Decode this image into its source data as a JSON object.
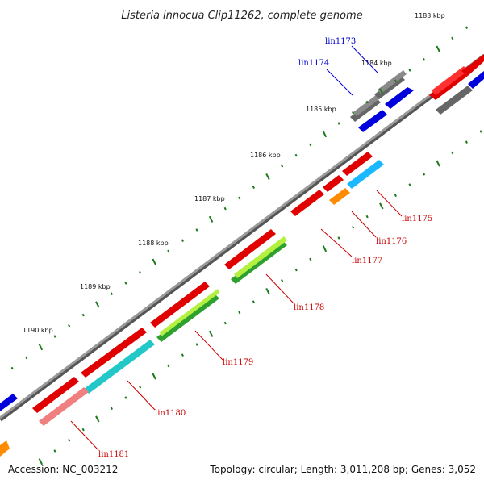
{
  "title": "Listeria innocua Clip11262, complete genome",
  "footer": {
    "accession": "Accession: NC_003212",
    "summary": "Topology: circular; Length: 3,011,208 bp; Genes: 3,052"
  },
  "colors": {
    "backbone": "#7a7a7a",
    "tick": "#1a7a1a",
    "forward_label": "#0000cc",
    "reverse_label": "#cc0000"
  },
  "ticks": [
    {
      "label": "1183 kbp"
    },
    {
      "label": "1184 kbp"
    },
    {
      "label": "1185 kbp"
    },
    {
      "label": "1186 kbp"
    },
    {
      "label": "1187 kbp"
    },
    {
      "label": "1188 kbp"
    },
    {
      "label": "1189 kbp"
    },
    {
      "label": "1190 kbp"
    }
  ],
  "gene_labels": [
    {
      "name": "lin1173",
      "strand": "forward"
    },
    {
      "name": "lin1174",
      "strand": "forward"
    },
    {
      "name": "lin1175",
      "strand": "reverse"
    },
    {
      "name": "lin1176",
      "strand": "reverse"
    },
    {
      "name": "lin1177",
      "strand": "reverse"
    },
    {
      "name": "lin1178",
      "strand": "reverse"
    },
    {
      "name": "lin1179",
      "strand": "reverse"
    },
    {
      "name": "lin1180",
      "strand": "reverse"
    },
    {
      "name": "lin1181",
      "strand": "reverse"
    }
  ]
}
